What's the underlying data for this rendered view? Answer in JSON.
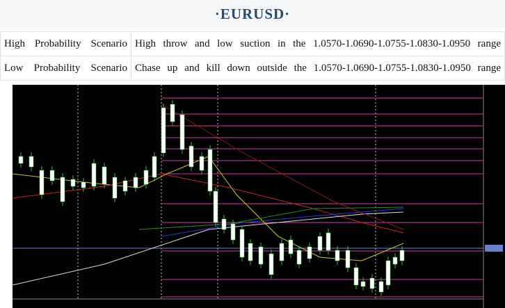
{
  "header": {
    "title": "·EURUSD·"
  },
  "table": {
    "rows": [
      [
        "High Probability Scenario",
        "High throw and low suction in the 1.0570-1.0690-1.0755-1.0830-1.0950 range"
      ],
      [
        "Low Probability Scenario",
        "Chase up and kill down outside the 1.0570-1.0690-1.0755-1.0830-1.0950 range"
      ]
    ]
  }
}
